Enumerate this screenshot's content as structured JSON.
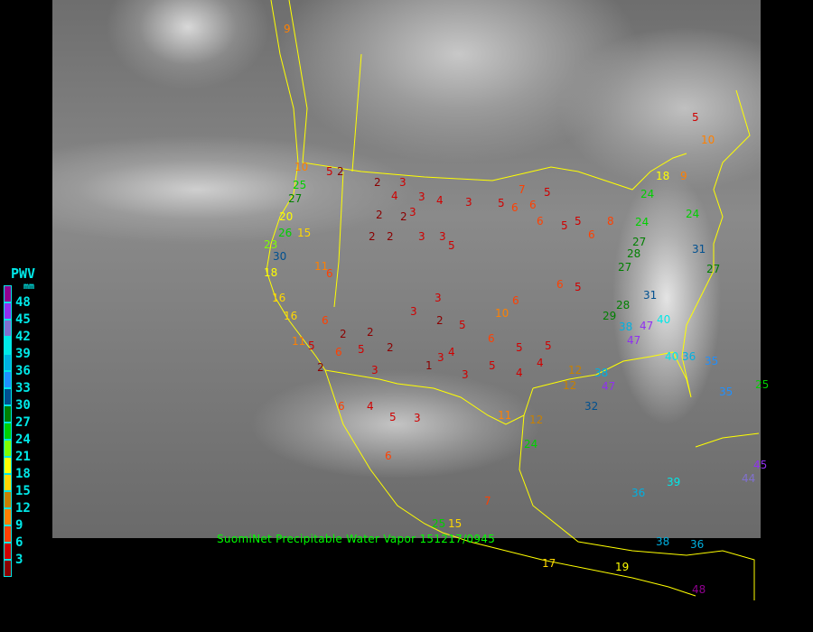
{
  "caption": "SuomiNet Precipitable Water Vapor 151217/0945",
  "legend": {
    "title": "PWV",
    "unit": "mm",
    "labels": [
      "48",
      "45",
      "42",
      "39",
      "36",
      "33",
      "30",
      "27",
      "24",
      "21",
      "18",
      "15",
      "12",
      "9",
      "6",
      "3"
    ],
    "colors_top_to_bottom": [
      "#900090",
      "#9030f0",
      "#8070d0",
      "#00e8e8",
      "#00b0e0",
      "#2090ff",
      "#005090",
      "#008000",
      "#00d000",
      "#80ff00",
      "#ffff00",
      "#ffd700",
      "#c88000",
      "#ff8000",
      "#ff4000",
      "#d00000",
      "#8b0000"
    ]
  },
  "border_color": "#ffff00",
  "stations": [
    "9",
    "10",
    "5",
    "2",
    "25",
    "27",
    "20",
    "26",
    "23",
    "30",
    "15",
    "11",
    "6",
    "2",
    "3",
    "4",
    "3",
    "4",
    "3",
    "2",
    "2",
    "3",
    "2",
    "2",
    "3",
    "3",
    "5",
    "5",
    "7",
    "5",
    "6",
    "6",
    "6",
    "5",
    "5",
    "6",
    "8",
    "24",
    "24",
    "27",
    "28",
    "27",
    "18",
    "9",
    "5",
    "10",
    "24",
    "31",
    "27",
    "31",
    "40",
    "47",
    "47",
    "40",
    "36",
    "35",
    "35",
    "25",
    "28",
    "29",
    "38",
    "38",
    "47",
    "32",
    "12",
    "12",
    "12",
    "11",
    "24",
    "3",
    "3",
    "2",
    "5",
    "6",
    "5",
    "5",
    "4",
    "1",
    "3",
    "2",
    "3",
    "3",
    "5",
    "4",
    "4",
    "6",
    "6",
    "5",
    "2",
    "2",
    "5",
    "2",
    "4",
    "5",
    "3",
    "6",
    "6",
    "7",
    "25",
    "15",
    "36",
    "39",
    "44",
    "45",
    "38",
    "36",
    "17",
    "19",
    "48",
    "18",
    "16",
    "16",
    "11",
    "10",
    "6",
    "6",
    "5"
  ]
}
